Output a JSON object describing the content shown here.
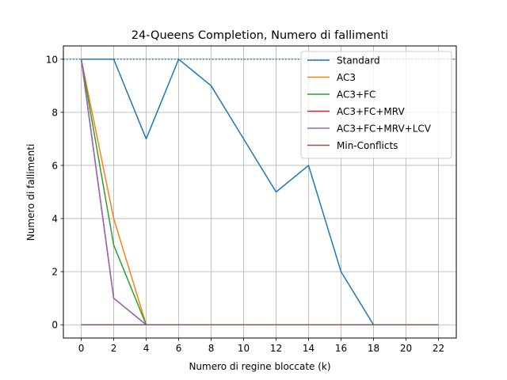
{
  "chart_data": {
    "type": "line",
    "title": "24-Queens Completion, Numero di fallimenti",
    "xlabel": "Numero di regine bloccate (k)",
    "ylabel": "Numero di fallimenti",
    "xlim": [
      -1.1,
      23.1
    ],
    "ylim": [
      -0.5,
      10.5
    ],
    "xticks": [
      0,
      2,
      4,
      6,
      8,
      10,
      12,
      14,
      16,
      18,
      20,
      22
    ],
    "yticks": [
      0,
      2,
      4,
      6,
      8,
      10
    ],
    "grid": true,
    "legend_position": "top-right",
    "reference_line": {
      "y": 10,
      "style": "dotted",
      "color": "#1f77b4"
    },
    "x": [
      0,
      2,
      4,
      6,
      8,
      10,
      12,
      14,
      16,
      18,
      20,
      22
    ],
    "series": [
      {
        "name": "Standard",
        "color": "#1f77b4",
        "values": [
          10,
          10,
          7,
          10,
          9,
          7,
          5,
          6,
          2,
          0,
          0,
          0
        ]
      },
      {
        "name": "AC3",
        "color": "#ff7f0e",
        "values": [
          10,
          4,
          0,
          0,
          0,
          0,
          0,
          0,
          0,
          0,
          0,
          0
        ]
      },
      {
        "name": "AC3+FC",
        "color": "#2ca02c",
        "values": [
          10,
          3,
          0,
          0,
          0,
          0,
          0,
          0,
          0,
          0,
          0,
          0
        ]
      },
      {
        "name": "AC3+FC+MRV",
        "color": "#d62728",
        "values": [
          10,
          1,
          0,
          0,
          0,
          0,
          0,
          0,
          0,
          0,
          0,
          0
        ]
      },
      {
        "name": "AC3+FC+MRV+LCV",
        "color": "#9467bd",
        "values": [
          10,
          1,
          0,
          0,
          0,
          0,
          0,
          0,
          0,
          0,
          0,
          0
        ]
      },
      {
        "name": "Min-Conflicts",
        "color": "#8c564b",
        "values": [
          0,
          0,
          0,
          0,
          0,
          0,
          0,
          0,
          0,
          0,
          0,
          0
        ]
      }
    ]
  }
}
